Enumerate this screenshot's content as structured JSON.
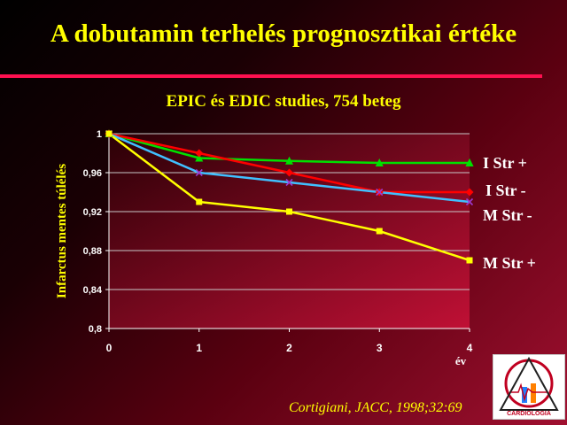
{
  "slide": {
    "title": "A dobutamin terhelés prognosztikai értéke",
    "subtitle": "EPIC és EDIC studies, 754 beteg",
    "citation": "Cortigiani, JACC, 1998;32:69"
  },
  "logo": {
    "text_bottom": "CARDIOLOGIA"
  },
  "chart_data": {
    "type": "line",
    "title": "EPIC és EDIC studies, 754 beteg",
    "ylabel": "Infarctus mentes túlélés",
    "xlabel": "év",
    "x": [
      0,
      1,
      2,
      3,
      4
    ],
    "x_ticks": [
      "0",
      "1",
      "2",
      "3",
      "4"
    ],
    "ylim": [
      0.8,
      1
    ],
    "y_ticks": [
      "0,8",
      "0,84",
      "0,88",
      "0,92",
      "0,96",
      "1"
    ],
    "grid": true,
    "legend": "right",
    "series": [
      {
        "name": "I Str +",
        "values": [
          1,
          0.975,
          0.972,
          0.97,
          0.97
        ],
        "color": "#00e000",
        "marker": "triangle"
      },
      {
        "name": "I Str -",
        "values": [
          1,
          0.98,
          0.96,
          0.94,
          0.94
        ],
        "color": "#ff0000",
        "marker": "diamond"
      },
      {
        "name": "M Str -",
        "values": [
          1,
          0.96,
          0.95,
          0.94,
          0.93
        ],
        "color": "#40c0ff",
        "marker": "x"
      },
      {
        "name": "M Str +",
        "values": [
          1,
          0.93,
          0.92,
          0.9,
          0.87
        ],
        "color": "#ffff00",
        "marker": "square"
      }
    ]
  }
}
